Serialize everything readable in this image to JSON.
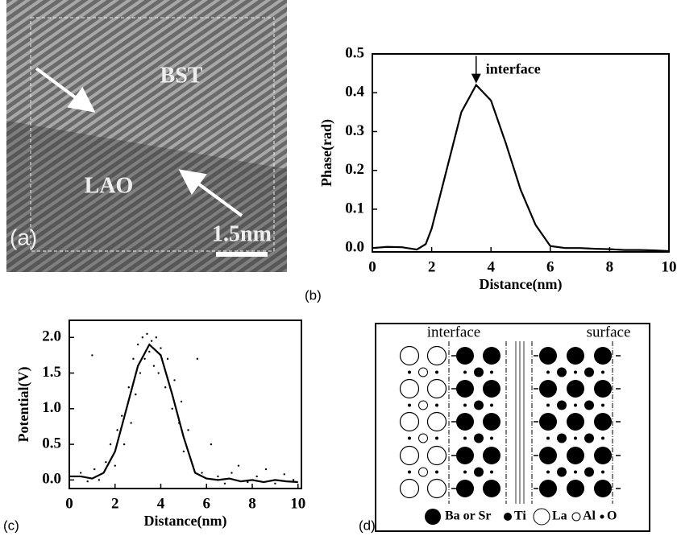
{
  "chart_data": [
    {
      "type": "line",
      "panel_label": "(b)",
      "xlabel": "Distance(nm)",
      "ylabel": "Phase(rad)",
      "annotation": "interface",
      "xlim": [
        0,
        10
      ],
      "ylim": [
        -0.01,
        0.5
      ],
      "xticks": [
        0,
        2,
        4,
        6,
        8,
        10
      ],
      "yticks": [
        {
          "value": 0,
          "label": "0.0"
        },
        {
          "value": 0.1,
          "label": "0.1"
        },
        {
          "value": 0.2,
          "label": "0.2"
        },
        {
          "value": 0.3,
          "label": "0.3"
        },
        {
          "value": 0.4,
          "label": "0.4"
        },
        {
          "value": 0.5,
          "label": "0.5"
        }
      ],
      "series": [
        {
          "type": "line",
          "color": "#000000",
          "x": [
            0,
            0.5,
            1,
            1.5,
            1.8,
            2,
            2.5,
            3,
            3.5,
            4,
            4.5,
            5,
            5.5,
            6,
            6.5,
            7,
            7.5,
            8,
            8.5,
            9,
            9.5,
            10
          ],
          "values": [
            0,
            0.003,
            0.002,
            -0.004,
            0.01,
            0.05,
            0.2,
            0.35,
            0.42,
            0.38,
            0.27,
            0.15,
            0.06,
            0.005,
            0,
            0,
            -0.002,
            -0.003,
            -0.005,
            -0.005,
            -0.006,
            -0.008
          ]
        }
      ]
    },
    {
      "type": "line",
      "panel_label": "(c)",
      "xlabel": "Distance(nm)",
      "ylabel": "Potential(V)",
      "xlim": [
        0,
        10.15
      ],
      "ylim": [
        -0.12,
        2.24
      ],
      "xticks": [
        0,
        2,
        4,
        6,
        8,
        10
      ],
      "yticks": [
        {
          "value": 0,
          "label": "0.0"
        },
        {
          "value": 0.5,
          "label": "0.5"
        },
        {
          "value": 1,
          "label": "1.0"
        },
        {
          "value": 1.5,
          "label": "1.5"
        },
        {
          "value": 2,
          "label": "2.0"
        }
      ],
      "series": [
        {
          "type": "line",
          "color": "#000000",
          "x": [
            0,
            0.5,
            1,
            1.5,
            2,
            2.5,
            3,
            3.5,
            4,
            4.5,
            5,
            5.5,
            6,
            6.5,
            7,
            7.5,
            8,
            8.5,
            9,
            9.5,
            10
          ],
          "values": [
            0.05,
            0.05,
            0.02,
            0.1,
            0.4,
            1.0,
            1.6,
            1.9,
            1.75,
            1.2,
            0.6,
            0.1,
            0.02,
            0,
            0.02,
            -0.02,
            0,
            -0.03,
            0,
            -0.02,
            -0.03
          ]
        },
        {
          "type": "scatter",
          "color": "#000000",
          "x": [
            0.2,
            0.5,
            0.8,
            1.1,
            1.3,
            1.6,
            1.8,
            2.0,
            2.1,
            2.3,
            2.4,
            2.6,
            2.7,
            2.8,
            2.9,
            3.0,
            3.1,
            3.2,
            3.3,
            3.4,
            3.5,
            3.6,
            3.7,
            3.8,
            3.9,
            4.0,
            4.2,
            4.3,
            4.5,
            4.6,
            4.8,
            4.9,
            5.0,
            5.2,
            5.4,
            5.6,
            5.8,
            6.2,
            6.5,
            6.8,
            7.1,
            7.4,
            7.8,
            8.2,
            8.6,
            9.0,
            9.4,
            9.8,
            1.0
          ],
          "values": [
            0.05,
            0.1,
            -0.02,
            0.15,
            0.0,
            0.25,
            0.5,
            0.2,
            0.7,
            0.9,
            0.5,
            1.3,
            0.8,
            1.7,
            1.2,
            1.9,
            1.5,
            2.0,
            1.7,
            2.05,
            1.8,
            1.95,
            1.6,
            2.0,
            1.5,
            1.85,
            1.3,
            1.7,
            1.0,
            1.4,
            0.8,
            1.1,
            0.4,
            0.7,
            0.2,
            1.7,
            0.1,
            0.5,
            0.05,
            -0.05,
            0.1,
            0.2,
            -0.03,
            0.05,
            0.15,
            -0.05,
            0.08,
            0.0,
            1.75
          ]
        }
      ]
    }
  ],
  "image_a": {
    "labels": [
      "BST",
      "LAO"
    ],
    "scale_bar": "1.5nm",
    "panel_label": "(a)"
  },
  "diagram_d": {
    "top_labels": [
      "interface",
      "surface"
    ],
    "legend": [
      "Ba or Sr",
      "Ti",
      "La",
      "Al",
      "O"
    ],
    "panel_label": "(d)"
  }
}
